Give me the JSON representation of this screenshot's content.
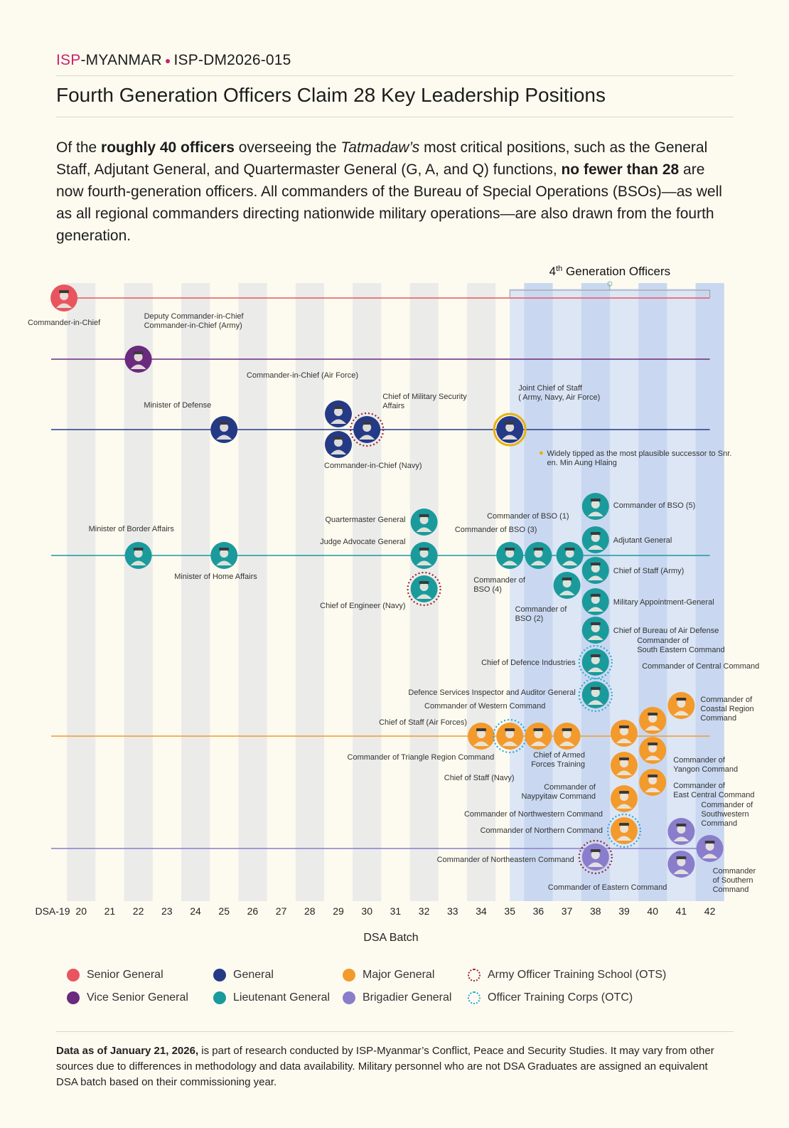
{
  "header": {
    "brand_isp": "ISP",
    "brand_rest": "-MYANMAR",
    "report_id": "ISP-DM2026-015",
    "title": "Fourth Generation Officers Claim 28 Key Leadership Positions"
  },
  "intro": {
    "p1": "Of the ",
    "b1": "roughly 40 officers",
    "p2": " overseeing the ",
    "i1": "Tatmadaw’s",
    "p3": " most critical positions, such as the General Staff, Adjutant General, and Quartermaster General (G, A, and Q) functions, ",
    "b2": "no fewer than 28",
    "p4": " are now fourth-generation officers. All commanders of the Bureau of Special Operations (BSOs)—as well as all regional commanders directing nationwide military operations—are also drawn from the fourth generation."
  },
  "colors": {
    "senior_general": "#e8555f",
    "vice_senior_general": "#6a2a7d",
    "general": "#253a86",
    "lieutenant_general": "#1b9a9c",
    "major_general": "#f39a2d",
    "brigadier_general": "#8a7dcb",
    "ots": "#9b2335",
    "otc": "#2aa9d9",
    "highlight": "#e8b20f"
  },
  "chart_data": {
    "type": "scatter",
    "xlabel": "DSA Batch",
    "x_ticks": [
      "DSA-19",
      "20",
      "21",
      "22",
      "23",
      "24",
      "25",
      "26",
      "27",
      "28",
      "29",
      "30",
      "31",
      "32",
      "33",
      "34",
      "35",
      "36",
      "37",
      "38",
      "39",
      "40",
      "41",
      "42"
    ],
    "xlim": [
      19,
      42
    ],
    "highlight_band": {
      "label_pre": "4",
      "label_sup": "th",
      "label_post": " Generation Officers",
      "from": 35,
      "to": 42
    },
    "note": "Widely tipped as the most plausible successor to Snr. Gen. Min Aung Hlaing",
    "rank_lines": [
      "senior_general",
      "vice_senior_general",
      "general",
      "lieutenant_general",
      "major_general",
      "brigadier_general"
    ],
    "points": [
      {
        "label": "Commander-in-Chief",
        "batch": 19,
        "rank": "senior_general",
        "ring": ""
      },
      {
        "label": "Deputy Commander-in-Chief Commander-in-Chief (Army)",
        "batch": 22,
        "rank": "vice_senior_general",
        "ring": ""
      },
      {
        "label": "Minister of Defense",
        "batch": 25,
        "rank": "general",
        "ring": ""
      },
      {
        "label": "Commander-in-Chief (Air Force)",
        "batch": 29,
        "rank": "general",
        "ring": ""
      },
      {
        "label": "Commander-in-Chief (Navy)",
        "batch": 29,
        "rank": "general",
        "ring": ""
      },
      {
        "label": "Chief of Military Security Affairs",
        "batch": 30,
        "rank": "general",
        "ring": "ots"
      },
      {
        "label": "Joint Chief of Staff ( Army, Navy, Air Force)",
        "batch": 35,
        "rank": "general",
        "ring": "highlight"
      },
      {
        "label": "Minister of Border Affairs",
        "batch": 22,
        "rank": "lieutenant_general",
        "ring": ""
      },
      {
        "label": "Minister of Home Affairs",
        "batch": 25,
        "rank": "lieutenant_general",
        "ring": ""
      },
      {
        "label": "Quartermaster General",
        "batch": 32,
        "rank": "lieutenant_general",
        "ring": ""
      },
      {
        "label": "Judge Advocate General",
        "batch": 32,
        "rank": "lieutenant_general",
        "ring": ""
      },
      {
        "label": "Chief of Engineer (Navy)",
        "batch": 32,
        "rank": "lieutenant_general",
        "ring": "ots"
      },
      {
        "label": "Commander of BSO (4)",
        "batch": 35,
        "rank": "lieutenant_general",
        "ring": ""
      },
      {
        "label": "Commander of BSO (3)",
        "batch": 36,
        "rank": "lieutenant_general",
        "ring": ""
      },
      {
        "label": "Commander of BSO (1)",
        "batch": 37,
        "rank": "lieutenant_general",
        "ring": ""
      },
      {
        "label": "Commander of BSO (2)",
        "batch": 37,
        "rank": "lieutenant_general",
        "ring": ""
      },
      {
        "label": "Commander of BSO (5)",
        "batch": 38,
        "rank": "lieutenant_general",
        "ring": ""
      },
      {
        "label": "Adjutant General",
        "batch": 38,
        "rank": "lieutenant_general",
        "ring": ""
      },
      {
        "label": "Chief of Staff (Army)",
        "batch": 38,
        "rank": "lieutenant_general",
        "ring": ""
      },
      {
        "label": "Military Appointment-General",
        "batch": 38,
        "rank": "lieutenant_general",
        "ring": ""
      },
      {
        "label": "Chief of Bureau of Air Defense",
        "batch": 38,
        "rank": "lieutenant_general",
        "ring": ""
      },
      {
        "label": "Chief of Defence Industries",
        "batch": 38,
        "rank": "lieutenant_general",
        "ring": "otc"
      },
      {
        "label": "Defence Services Inspector and Auditor General",
        "batch": 38,
        "rank": "lieutenant_general",
        "ring": "otc"
      },
      {
        "label": "Chief of Staff (Air Forces)",
        "batch": 34,
        "rank": "major_general",
        "ring": ""
      },
      {
        "label": "Commander of Triangle Region Command",
        "batch": 35,
        "rank": "major_general",
        "ring": "otc"
      },
      {
        "label": "Commander of Western Command",
        "batch": 36,
        "rank": "major_general",
        "ring": ""
      },
      {
        "label": "Chief of Staff (Navy)",
        "batch": 37,
        "rank": "major_general",
        "ring": ""
      },
      {
        "label": "Chief of Armed Forces Training",
        "batch": 39,
        "rank": "major_general",
        "ring": ""
      },
      {
        "label": "Commander of Naypyitaw Command",
        "batch": 39,
        "rank": "major_general",
        "ring": ""
      },
      {
        "label": "Commander of Northwestern Command",
        "batch": 39,
        "rank": "major_general",
        "ring": ""
      },
      {
        "label": "Commander of Northern Command",
        "batch": 39,
        "rank": "major_general",
        "ring": "otc"
      },
      {
        "label": "Commander of South Eastern Command",
        "batch": 40,
        "rank": "major_general",
        "ring": ""
      },
      {
        "label": "Commander of Central Command",
        "batch": 40,
        "rank": "major_general",
        "ring": ""
      },
      {
        "label": "Commander of Yangon Command",
        "batch": 40,
        "rank": "major_general",
        "ring": ""
      },
      {
        "label": "Commander of East Central Command",
        "batch": 40,
        "rank": "major_general",
        "ring": ""
      },
      {
        "label": "Commander of Coastal Region Command",
        "batch": 41,
        "rank": "major_general",
        "ring": ""
      },
      {
        "label": "Commander of Northeastern Command",
        "batch": 38,
        "rank": "brigadier_general",
        "ring": "ots"
      },
      {
        "label": "Commander of Southwestern Command",
        "batch": 41,
        "rank": "brigadier_general",
        "ring": ""
      },
      {
        "label": "Commander of Eastern Command",
        "batch": 41,
        "rank": "brigadier_general",
        "ring": ""
      },
      {
        "label": "Commander of Southern Command",
        "batch": 42,
        "rank": "brigadier_general",
        "ring": ""
      }
    ]
  },
  "legend": {
    "senior_general": "Senior General",
    "vice_senior_general": "Vice Senior General",
    "general": "General",
    "lieutenant_general": "Lieutenant General",
    "major_general": "Major General",
    "brigadier_general": "Brigadier General",
    "ots": "Army Officer Training School (OTS)",
    "otc": "Officer Training Corps (OTC)"
  },
  "footer": {
    "bold": "Data as of January  21, 2026,",
    "text": " is part of research conducted by ISP-Myanmar’s Conflict, Peace and Security Studies. It may vary from other sources due to differences in methodology and data availability. Military personnel who are not DSA Graduates are assigned an equivalent DSA batch based on their commissioning year."
  }
}
